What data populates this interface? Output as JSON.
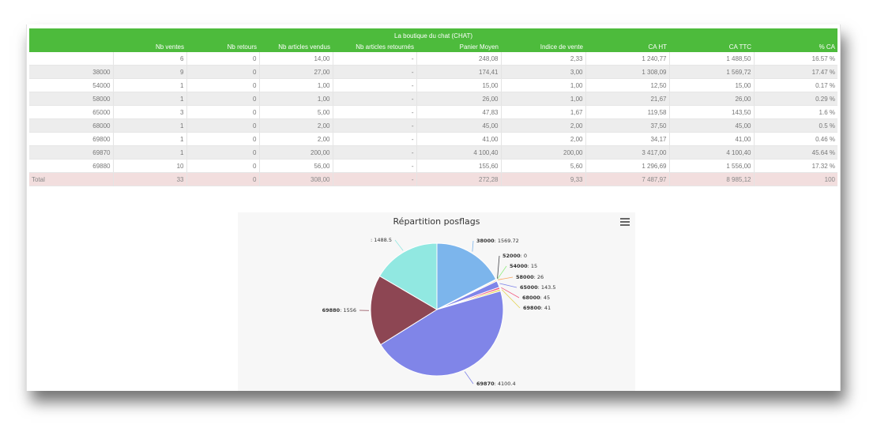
{
  "table": {
    "title": "La boutique du chat (CHAT)",
    "columns": [
      "",
      "Nb ventes",
      "Nb retours",
      "Nb articles vendus",
      "Nb articles retournés",
      "Panier Moyen",
      "Indice de vente",
      "CA HT",
      "CA TTC",
      "% CA"
    ],
    "rows": [
      [
        "",
        "6",
        "0",
        "14,00",
        "-",
        "248,08",
        "2,33",
        "1 240,77",
        "1 488,50",
        "16.57 %"
      ],
      [
        "38000",
        "9",
        "0",
        "27,00",
        "-",
        "174,41",
        "3,00",
        "1 308,09",
        "1 569,72",
        "17.47 %"
      ],
      [
        "54000",
        "1",
        "0",
        "1,00",
        "-",
        "15,00",
        "1,00",
        "12,50",
        "15,00",
        "0.17 %"
      ],
      [
        "58000",
        "1",
        "0",
        "1,00",
        "-",
        "26,00",
        "1,00",
        "21,67",
        "26,00",
        "0.29 %"
      ],
      [
        "65000",
        "3",
        "0",
        "5,00",
        "-",
        "47,83",
        "1,67",
        "119,58",
        "143,50",
        "1.6 %"
      ],
      [
        "68000",
        "1",
        "0",
        "2,00",
        "-",
        "45,00",
        "2,00",
        "37,50",
        "45,00",
        "0.5 %"
      ],
      [
        "69800",
        "1",
        "0",
        "2,00",
        "-",
        "41,00",
        "2,00",
        "34,17",
        "41,00",
        "0.46 %"
      ],
      [
        "69870",
        "1",
        "0",
        "200,00",
        "-",
        "4 100,40",
        "200,00",
        "3 417,00",
        "4 100,40",
        "45.64 %"
      ],
      [
        "69880",
        "10",
        "0",
        "56,00",
        "-",
        "155,60",
        "5,60",
        "1 296,69",
        "1 556,00",
        "17.32 %"
      ]
    ],
    "total": [
      "Total",
      "33",
      "0",
      "308,00",
      "-",
      "272,28",
      "9,33",
      "7 487,97",
      "8 985,12",
      "100"
    ],
    "colors": {
      "header": "#4dbb3c",
      "alt_row": "#ededed",
      "total_row": "#f2dede"
    }
  },
  "chart": {
    "menu_icon": "hamburger-menu-icon"
  },
  "chart_data": {
    "type": "pie",
    "title": "Répartition posflags",
    "slices": [
      {
        "name": "38000",
        "value": 1569.72,
        "color": "#7cb5ec"
      },
      {
        "name": "52000",
        "value": 0,
        "color": "#434348"
      },
      {
        "name": "54000",
        "value": 15,
        "color": "#90ed7d"
      },
      {
        "name": "58000",
        "value": 26,
        "color": "#f7a35c"
      },
      {
        "name": "65000",
        "value": 143.5,
        "color": "#8085e9"
      },
      {
        "name": "68000",
        "value": 45,
        "color": "#f15c80"
      },
      {
        "name": "69800",
        "value": 41,
        "color": "#e4d354"
      },
      {
        "name": "69870",
        "value": 4100.4,
        "color": "#8085e8"
      },
      {
        "name": "69880",
        "value": 1556,
        "color": "#8d4653"
      },
      {
        "name": "",
        "value": 1488.5,
        "color": "#91e8e1"
      }
    ],
    "legend": "none",
    "data_labels": true
  }
}
